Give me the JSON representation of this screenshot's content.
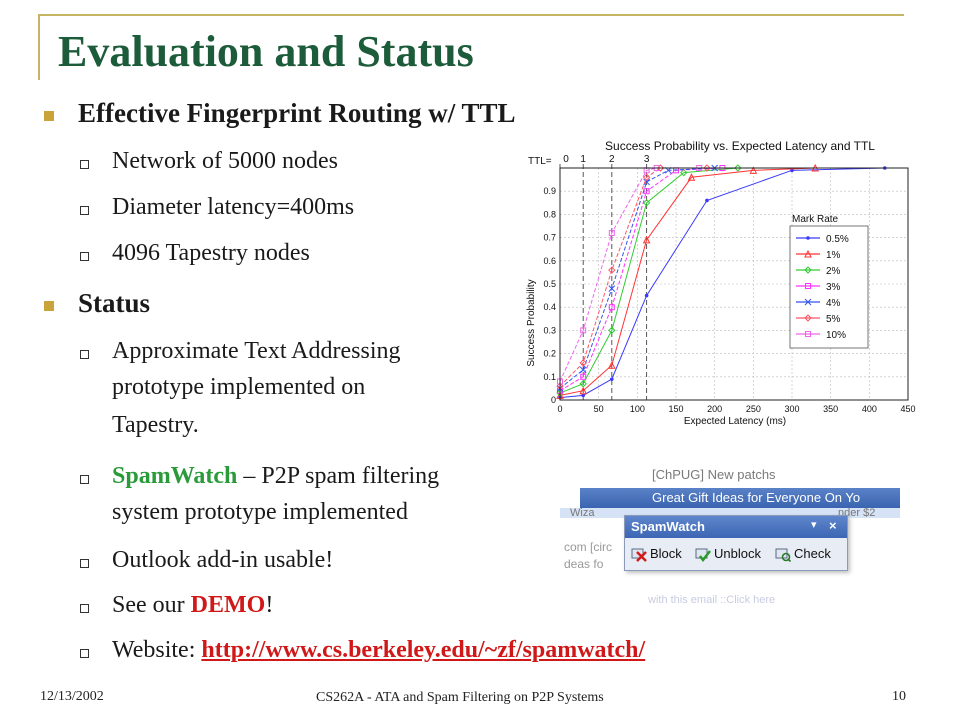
{
  "slide": {
    "title": "Evaluation and Status",
    "bullets": [
      {
        "text": "Effective Fingerprint Routing w/ TTL",
        "subs": [
          "Network of 5000 nodes",
          "Diameter latency=400ms",
          "4096 Tapestry nodes"
        ]
      },
      {
        "text": "Status",
        "subs_plain": {
          "s1_line1": "Approximate Text Addressing",
          "s1_line2": "prototype implemented on",
          "s1_line3": "Tapestry.",
          "s2_name": "SpamWatch",
          "s2_rest": " – P2P spam filtering",
          "s2_line2": "system prototype implemented",
          "s3": "Outlook add-in usable!",
          "s4_pre": "See our ",
          "s4_demo": "DEMO",
          "s4_post": "!",
          "s5_pre": "Website:  ",
          "s5_link": "http://www.cs.berkeley.edu/~zf/spamwatch/"
        }
      }
    ]
  },
  "screenshot": {
    "top_text": "[ChPUG] New patchs",
    "banner_text": "Great Gift Ideas for Everyone On Yo",
    "toolbar_title": "SpamWatch",
    "block_label": "Block",
    "unblock_label": "Unblock",
    "check_label": "Check",
    "left_frag_1": "Wiza",
    "left_frag_2": "com [circ",
    "left_frag_3": "deas fo",
    "right_frag": "nder $2",
    "bottom_frag": "with this email ::Click here"
  },
  "footer": {
    "date": "12/13/2002",
    "course": "CS262A - ATA and Spam Filtering on P2P Systems",
    "page": "10"
  },
  "chart_data": {
    "type": "line",
    "title": "Success Probability vs. Expected Latency and TTL",
    "xlabel": "Expected Latency (ms)",
    "ylabel": "Success Probability",
    "xlim": [
      0,
      450
    ],
    "ylim": [
      0,
      1
    ],
    "xticks": [
      0,
      50,
      100,
      150,
      200,
      250,
      300,
      350,
      400,
      450
    ],
    "yticks": [
      0,
      0.1,
      0.2,
      0.3,
      0.4,
      0.5,
      0.6,
      0.7,
      0.8,
      0.9
    ],
    "ttl_label": "TTL=",
    "ttl_markers": [
      {
        "label": "0",
        "x": 0
      },
      {
        "label": "1",
        "x": 30
      },
      {
        "label": "2",
        "x": 67
      },
      {
        "label": "3",
        "x": 112
      }
    ],
    "grid": true,
    "legend": {
      "title": "Mark Rate",
      "placement": "right"
    },
    "series": [
      {
        "name": "0.5%",
        "color": "#3a3aff",
        "marker": "dot",
        "x": [
          0,
          30,
          67,
          112,
          190,
          300,
          420
        ],
        "y": [
          0.01,
          0.02,
          0.09,
          0.45,
          0.86,
          0.99,
          1.0
        ]
      },
      {
        "name": "1%",
        "color": "#ff3333",
        "marker": "triangle",
        "x": [
          0,
          30,
          67,
          112,
          170,
          250,
          330
        ],
        "y": [
          0.02,
          0.04,
          0.15,
          0.69,
          0.96,
          0.99,
          1.0
        ]
      },
      {
        "name": "2%",
        "color": "#33cc33",
        "marker": "diamond",
        "x": [
          0,
          30,
          67,
          112,
          160,
          230
        ],
        "y": [
          0.03,
          0.07,
          0.3,
          0.85,
          0.98,
          1.0
        ]
      },
      {
        "name": "3%",
        "color": "#ff33ff",
        "marker": "square",
        "x": [
          0,
          30,
          67,
          112,
          150,
          210
        ],
        "y": [
          0.04,
          0.1,
          0.4,
          0.9,
          0.99,
          1.0
        ]
      },
      {
        "name": "4%",
        "color": "#3355ee",
        "marker": "x",
        "x": [
          0,
          30,
          67,
          112,
          140,
          200
        ],
        "y": [
          0.05,
          0.13,
          0.48,
          0.94,
          0.99,
          1.0
        ]
      },
      {
        "name": "5%",
        "color": "#ff5566",
        "marker": "diamond",
        "x": [
          0,
          30,
          67,
          112,
          130,
          190
        ],
        "y": [
          0.06,
          0.16,
          0.56,
          0.96,
          1.0,
          1.0
        ]
      },
      {
        "name": "10%",
        "color": "#ee66ee",
        "marker": "square",
        "x": [
          0,
          30,
          67,
          112,
          125,
          180
        ],
        "y": [
          0.08,
          0.3,
          0.72,
          0.99,
          1.0,
          1.0
        ]
      }
    ]
  }
}
